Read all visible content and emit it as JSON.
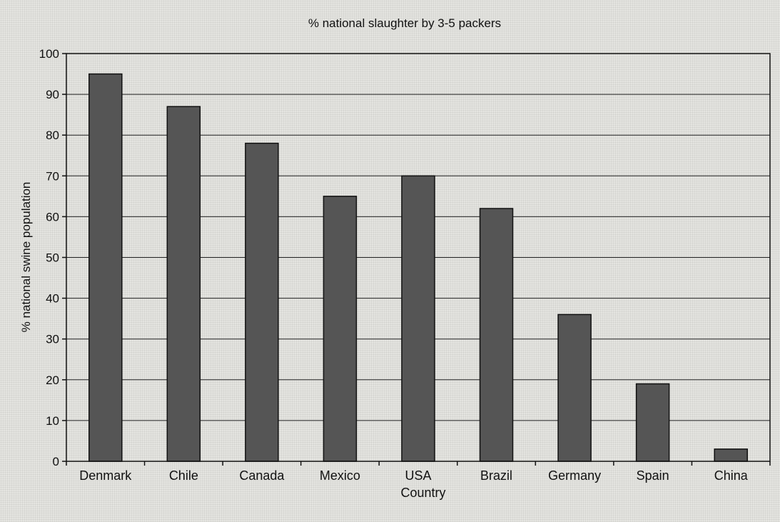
{
  "chart_data": {
    "type": "bar",
    "title": "% national slaughter by 3-5 packers",
    "xlabel": "Country",
    "ylabel": "% national swine population",
    "categories": [
      "Denmark",
      "Chile",
      "Canada",
      "Mexico",
      "USA",
      "Brazil",
      "Germany",
      "Spain",
      "China"
    ],
    "values": [
      95,
      87,
      78,
      65,
      70,
      62,
      36,
      19,
      3
    ],
    "ylim": [
      0,
      100
    ],
    "yticks": [
      0,
      10,
      20,
      30,
      40,
      50,
      60,
      70,
      80,
      90,
      100
    ],
    "grid": true,
    "bar_color": "#555555"
  }
}
